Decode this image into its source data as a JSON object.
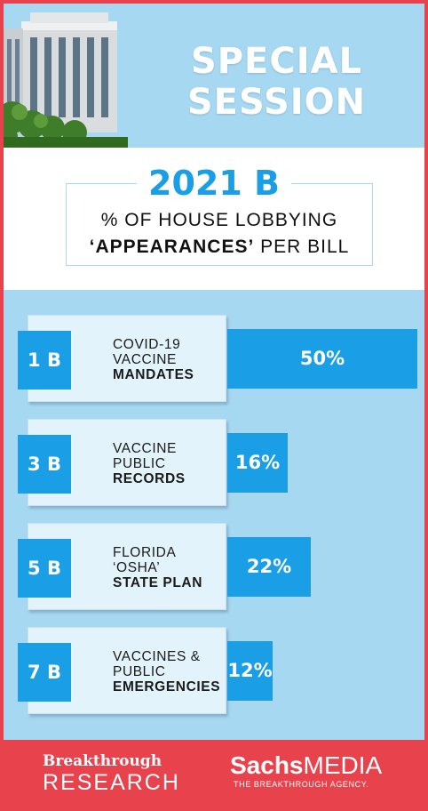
{
  "header": {
    "title_line1": "SPECIAL",
    "title_line2": "SESSION"
  },
  "subtitle": {
    "year": "2021 B",
    "line1": "% OF HOUSE LOBBYING",
    "line2_bold": "‘APPEARANCES’",
    "line2_rest": " PER BILL"
  },
  "chart_data": {
    "type": "bar",
    "orientation": "horizontal",
    "title": "2021 B",
    "subtitle": "% OF HOUSE LOBBYING ‘APPEARANCES’ PER BILL",
    "unit": "%",
    "categories": [
      "1 B",
      "3 B",
      "5 B",
      "7 B"
    ],
    "values": [
      50,
      16,
      22,
      12
    ],
    "value_labels": [
      "50%",
      "16%",
      "22%",
      "12%"
    ],
    "rows": [
      {
        "bill": "1 B",
        "lines": [
          "COVID-19",
          "VACCINE"
        ],
        "bold": "MANDATES",
        "value": 50,
        "value_label": "50%"
      },
      {
        "bill": "3 B",
        "lines": [
          "VACCINE",
          "PUBLIC"
        ],
        "bold": "RECORDS",
        "value": 16,
        "value_label": "16%"
      },
      {
        "bill": "5 B",
        "lines": [
          "FLORIDA",
          "‘OSHA’"
        ],
        "bold": "STATE PLAN",
        "value": 22,
        "value_label": "22%"
      },
      {
        "bill": "7 B",
        "lines": [
          "VACCINES &",
          "PUBLIC"
        ],
        "bold": "EMERGENCIES",
        "value": 12,
        "value_label": "12%"
      }
    ],
    "colors": {
      "bar": "#1a9ee6",
      "background": "#a6d8f2",
      "card": "#e3f3fc"
    }
  },
  "footer": {
    "left_line1": "Breakthrough",
    "left_line2": "RESEARCH",
    "right_bold": "Sachs",
    "right_rest": "MEDIA",
    "right_tagline": "THE BREAKTHROUGH AGENCY."
  },
  "colors": {
    "frame": "#e8424c",
    "accent": "#1a9ee6",
    "light_blue": "#a6d8f2"
  }
}
